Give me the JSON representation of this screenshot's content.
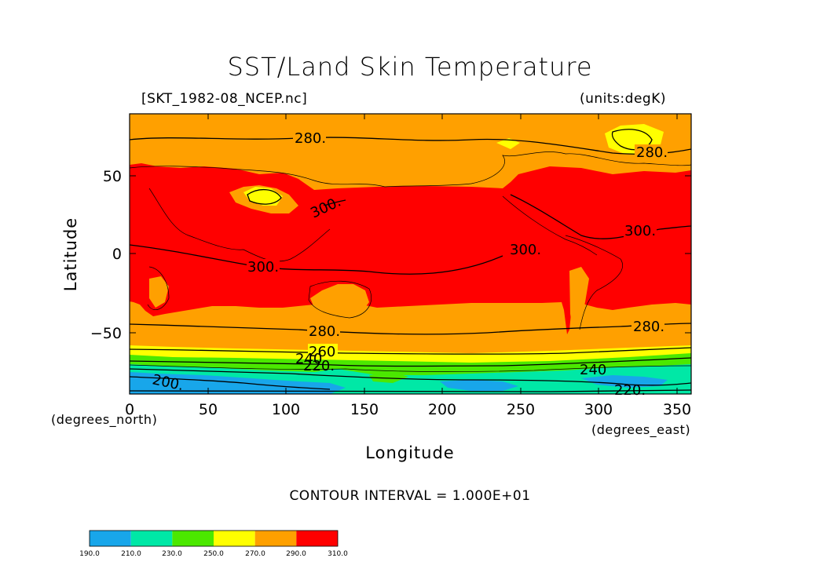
{
  "title": "SST/Land Skin Temperature",
  "file_label": "[SKT_1982-08_NCEP.nc]",
  "units_label": "(units:degK)",
  "ylabel": "Latitude",
  "xlabel": "Longitude",
  "x_units": "(degrees_east)",
  "y_units": "(degrees_north)",
  "contour_interval": "CONTOUR INTERVAL = 1.000E+01",
  "x_ticks": [
    "0",
    "50",
    "100",
    "150",
    "200",
    "250",
    "300",
    "350"
  ],
  "y_ticks": [
    "50",
    "0",
    "−50"
  ],
  "colorbar": {
    "labels": [
      "190.0",
      "210.0",
      "230.0",
      "250.0",
      "270.0",
      "290.0",
      "310.0"
    ],
    "colors": [
      "#18a6ea",
      "#00e8a6",
      "#4be800",
      "#ffff00",
      "#ffa000",
      "#ff0000"
    ]
  },
  "contour_labels": [
    "280.",
    "280.",
    "300.",
    "300.",
    "300.",
    "300.",
    "280.",
    "280.",
    "260",
    "240",
    "220.",
    "240",
    "200.",
    "220."
  ],
  "colors": {
    "band_270_290": "#ffa000",
    "band_290_310": "#ff0000",
    "band_250_270": "#ffff00",
    "band_230_250": "#4be800",
    "band_210_230": "#00e8a6",
    "band_190_210": "#18a6ea"
  }
}
